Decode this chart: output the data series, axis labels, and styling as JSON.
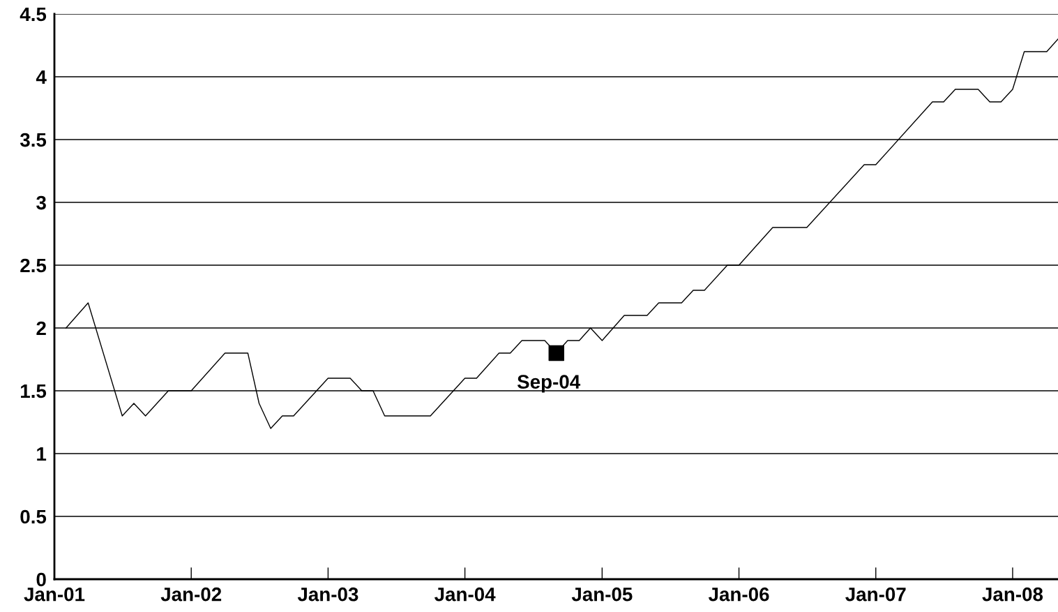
{
  "chart_data": {
    "type": "line",
    "series": [
      {
        "color": "#000000",
        "line_style": "solid",
        "x": [
          "2001-02",
          "2001-04",
          "2001-07",
          "2001-08",
          "2001-09",
          "2001-11",
          "2002-01",
          "2002-04",
          "2002-06",
          "2002-07",
          "2002-08",
          "2002-09",
          "2002-10",
          "2003-01",
          "2003-03",
          "2003-04",
          "2003-05",
          "2003-06",
          "2003-10",
          "2004-01",
          "2004-02",
          "2004-04",
          "2004-05",
          "2004-06",
          "2004-08",
          "2004-09",
          "2004-10",
          "2004-11",
          "2004-12",
          "2005-01",
          "2005-03",
          "2005-05",
          "2005-06",
          "2005-08",
          "2005-09",
          "2005-10",
          "2005-12",
          "2006-01",
          "2006-04",
          "2006-07",
          "2006-12",
          "2007-01",
          "2007-06",
          "2007-07",
          "2007-08",
          "2007-10",
          "2007-11",
          "2007-12",
          "2008-01",
          "2008-02",
          "2008-04",
          "2008-05"
        ],
        "values": [
          2.0,
          2.2,
          1.3,
          1.4,
          1.3,
          1.5,
          1.5,
          1.8,
          1.8,
          1.4,
          1.2,
          1.3,
          1.3,
          1.6,
          1.6,
          1.5,
          1.5,
          1.3,
          1.3,
          1.6,
          1.6,
          1.8,
          1.8,
          1.9,
          1.9,
          1.8,
          1.9,
          1.9,
          2.0,
          1.9,
          2.1,
          2.1,
          2.2,
          2.2,
          2.3,
          2.3,
          2.5,
          2.5,
          2.8,
          2.8,
          3.3,
          3.3,
          3.8,
          3.8,
          3.9,
          3.9,
          3.8,
          3.8,
          3.9,
          4.2,
          4.2,
          4.3
        ]
      },
      {
        "type": "scatter",
        "marker": "square",
        "color": "#000000",
        "x": [
          "2004-09"
        ],
        "values": [
          1.8
        ]
      }
    ],
    "annotations": [
      {
        "text": "Sep-04",
        "x": "2004-09",
        "y": 1.8
      }
    ],
    "xlim": [
      "2001-01",
      "2008-05"
    ],
    "xticks": [
      {
        "value": "2001-01",
        "label": "Jan-01"
      },
      {
        "value": "2002-01",
        "label": "Jan-02"
      },
      {
        "value": "2003-01",
        "label": "Jan-03"
      },
      {
        "value": "2004-01",
        "label": "Jan-04"
      },
      {
        "value": "2005-01",
        "label": "Jan-05"
      },
      {
        "value": "2006-01",
        "label": "Jan-06"
      },
      {
        "value": "2007-01",
        "label": "Jan-07"
      },
      {
        "value": "2008-01",
        "label": "Jan-08"
      }
    ],
    "ylim": [
      0,
      4.5
    ],
    "yticks": [
      0,
      0.5,
      1,
      1.5,
      2,
      2.5,
      3,
      3.5,
      4,
      4.5
    ],
    "grid": "y",
    "legend": false
  }
}
